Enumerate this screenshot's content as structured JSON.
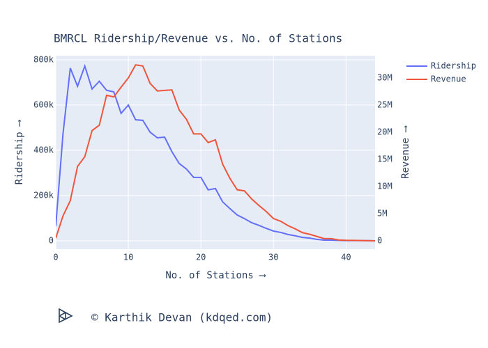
{
  "chart_data": {
    "type": "line",
    "title": "BMRCL Ridership/Revenue vs. No. of Stations",
    "x_label": "No. of Stations ⟶",
    "y_label": "Ridership ⟶",
    "y2_label": "Revenue ⟶",
    "footer": "© Karthik Devan (kdqed.com)",
    "x": [
      0,
      1,
      2,
      3,
      4,
      5,
      6,
      7,
      8,
      9,
      10,
      11,
      12,
      13,
      14,
      15,
      16,
      17,
      18,
      19,
      20,
      21,
      22,
      23,
      24,
      25,
      26,
      27,
      28,
      29,
      30,
      31,
      32,
      33,
      34,
      35,
      36,
      37,
      38,
      39,
      40,
      41,
      42,
      43,
      44
    ],
    "series": [
      {
        "name": "Ridership",
        "color": "#636efa",
        "axis": "y",
        "values": [
          65000,
          474000,
          763000,
          683000,
          772000,
          671000,
          705000,
          665000,
          658000,
          563000,
          600000,
          535000,
          532000,
          480000,
          455000,
          458000,
          394000,
          342000,
          317000,
          280000,
          280000,
          225000,
          231000,
          172000,
          142000,
          114000,
          98000,
          80000,
          68000,
          55000,
          43000,
          37000,
          28000,
          22000,
          15000,
          12000,
          6000,
          3000,
          3000,
          2000,
          1000,
          1000,
          1000,
          500,
          0
        ]
      },
      {
        "name": "Revenue",
        "color": "#ef553b",
        "axis": "y2",
        "values": [
          500000,
          4600000,
          7400000,
          13700000,
          15500000,
          20300000,
          21300000,
          26800000,
          26500000,
          28300000,
          30000000,
          32400000,
          32200000,
          29000000,
          27600000,
          27700000,
          27800000,
          24100000,
          22400000,
          19700000,
          19700000,
          18100000,
          18600000,
          14100000,
          11500000,
          9400000,
          9200000,
          7700000,
          6500000,
          5400000,
          4100000,
          3600000,
          2800000,
          2200000,
          1500000,
          1200000,
          800000,
          400000,
          400000,
          150000,
          100000,
          80000,
          50000,
          30000,
          0
        ]
      }
    ],
    "xlim": [
      0,
      44
    ],
    "xticks": [
      0,
      10,
      20,
      30,
      40
    ],
    "ylim": [
      -37000,
      818000
    ],
    "yticks": [
      0,
      {
        "value": 200000,
        "label": "200k"
      },
      {
        "value": 400000,
        "label": "400k"
      },
      {
        "value": 600000,
        "label": "600k"
      },
      {
        "value": 800000,
        "label": "800k"
      }
    ],
    "y2lim": [
      -1540000,
      34100000
    ],
    "y2ticks": [
      0,
      {
        "value": 5000000,
        "label": "5M"
      },
      {
        "value": 10000000,
        "label": "10M"
      },
      {
        "value": 15000000,
        "label": "15M"
      },
      {
        "value": 20000000,
        "label": "20M"
      },
      {
        "value": 25000000,
        "label": "25M"
      },
      {
        "value": 30000000,
        "label": "30M"
      }
    ],
    "grid": true,
    "legend": "top-right"
  }
}
